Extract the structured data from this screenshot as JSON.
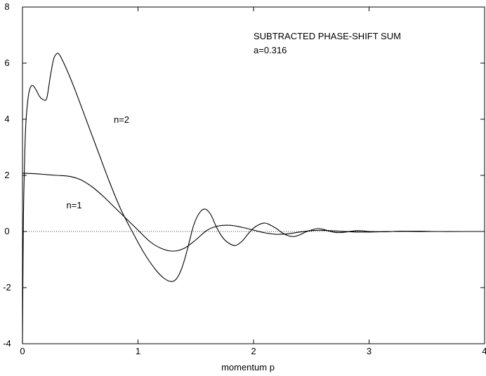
{
  "chart_data": {
    "type": "line",
    "title": "SUBTRACTED PHASE-SHIFT SUM",
    "subtitle": "a=0.316",
    "xlabel": "momentum p",
    "ylabel": "",
    "xlim": [
      0,
      4
    ],
    "ylim": [
      -4,
      8
    ],
    "x_ticks": [
      "0",
      "1",
      "2",
      "3",
      "4"
    ],
    "y_ticks": [
      "-4",
      "-2",
      "0",
      "2",
      "4",
      "6",
      "8"
    ],
    "grid": false,
    "zero_line": "dotted",
    "series": [
      {
        "name": "n=1",
        "x": [
          0,
          0.1,
          0.2,
          0.3,
          0.4,
          0.5,
          0.6,
          0.7,
          0.8,
          0.9,
          1.0,
          1.1,
          1.2,
          1.3,
          1.4,
          1.5,
          1.6,
          1.7,
          1.8,
          1.9,
          2.0,
          2.1,
          2.2,
          2.3,
          2.4,
          2.5,
          2.6,
          2.7,
          2.8,
          2.9,
          3.0,
          3.2,
          3.4,
          3.6,
          3.8,
          4.0
        ],
        "y": [
          2.08,
          2.06,
          2.03,
          2.0,
          1.97,
          1.85,
          1.6,
          1.25,
          0.85,
          0.45,
          0.05,
          -0.35,
          -0.6,
          -0.7,
          -0.6,
          -0.3,
          0.05,
          0.2,
          0.22,
          0.15,
          0.05,
          -0.05,
          -0.1,
          -0.08,
          -0.02,
          0.03,
          0.04,
          0.02,
          0.0,
          -0.02,
          -0.02,
          0.0,
          0.01,
          0.0,
          0.0,
          0.0
        ]
      },
      {
        "name": "n=2",
        "x": [
          0,
          0.005,
          0.01,
          0.02,
          0.03,
          0.05,
          0.07,
          0.09,
          0.11,
          0.13,
          0.15,
          0.18,
          0.21,
          0.24,
          0.27,
          0.3,
          0.32,
          0.34,
          0.38,
          0.45,
          0.55,
          0.65,
          0.75,
          0.85,
          0.95,
          1.05,
          1.15,
          1.22,
          1.28,
          1.33,
          1.38,
          1.43,
          1.48,
          1.53,
          1.58,
          1.63,
          1.68,
          1.73,
          1.78,
          1.84,
          1.9,
          1.95,
          2.0,
          2.05,
          2.1,
          2.15,
          2.2,
          2.25,
          2.3,
          2.35,
          2.4,
          2.45,
          2.5,
          2.55,
          2.6,
          2.65,
          2.7,
          2.75,
          2.8,
          2.85,
          2.9,
          2.95,
          3.0,
          3.1,
          3.2,
          3.3,
          3.4,
          3.5,
          3.6,
          3.7,
          3.8,
          3.9,
          4.0
        ],
        "y": [
          -4.0,
          -1.0,
          1.0,
          2.8,
          3.9,
          4.8,
          5.15,
          5.2,
          5.1,
          4.95,
          4.8,
          4.7,
          4.75,
          5.5,
          6.15,
          6.35,
          6.3,
          6.15,
          5.8,
          5.1,
          4.0,
          2.9,
          1.8,
          0.8,
          0.0,
          -0.75,
          -1.35,
          -1.65,
          -1.78,
          -1.7,
          -1.3,
          -0.6,
          0.2,
          0.65,
          0.8,
          0.6,
          0.15,
          -0.2,
          -0.4,
          -0.5,
          -0.35,
          -0.1,
          0.12,
          0.25,
          0.3,
          0.22,
          0.1,
          -0.05,
          -0.15,
          -0.18,
          -0.12,
          -0.02,
          0.05,
          0.1,
          0.08,
          0.02,
          -0.03,
          -0.04,
          -0.02,
          0.01,
          0.03,
          0.02,
          0.0,
          -0.01,
          0.0,
          0.01,
          0.0,
          0.0,
          0.0,
          0.0,
          0.0,
          0.0,
          0.0
        ]
      }
    ],
    "annotations": [
      {
        "text": "n=2",
        "x": 0.79,
        "y": 4.0
      },
      {
        "text": "n=1",
        "x": 0.38,
        "y": 0.95
      }
    ]
  }
}
